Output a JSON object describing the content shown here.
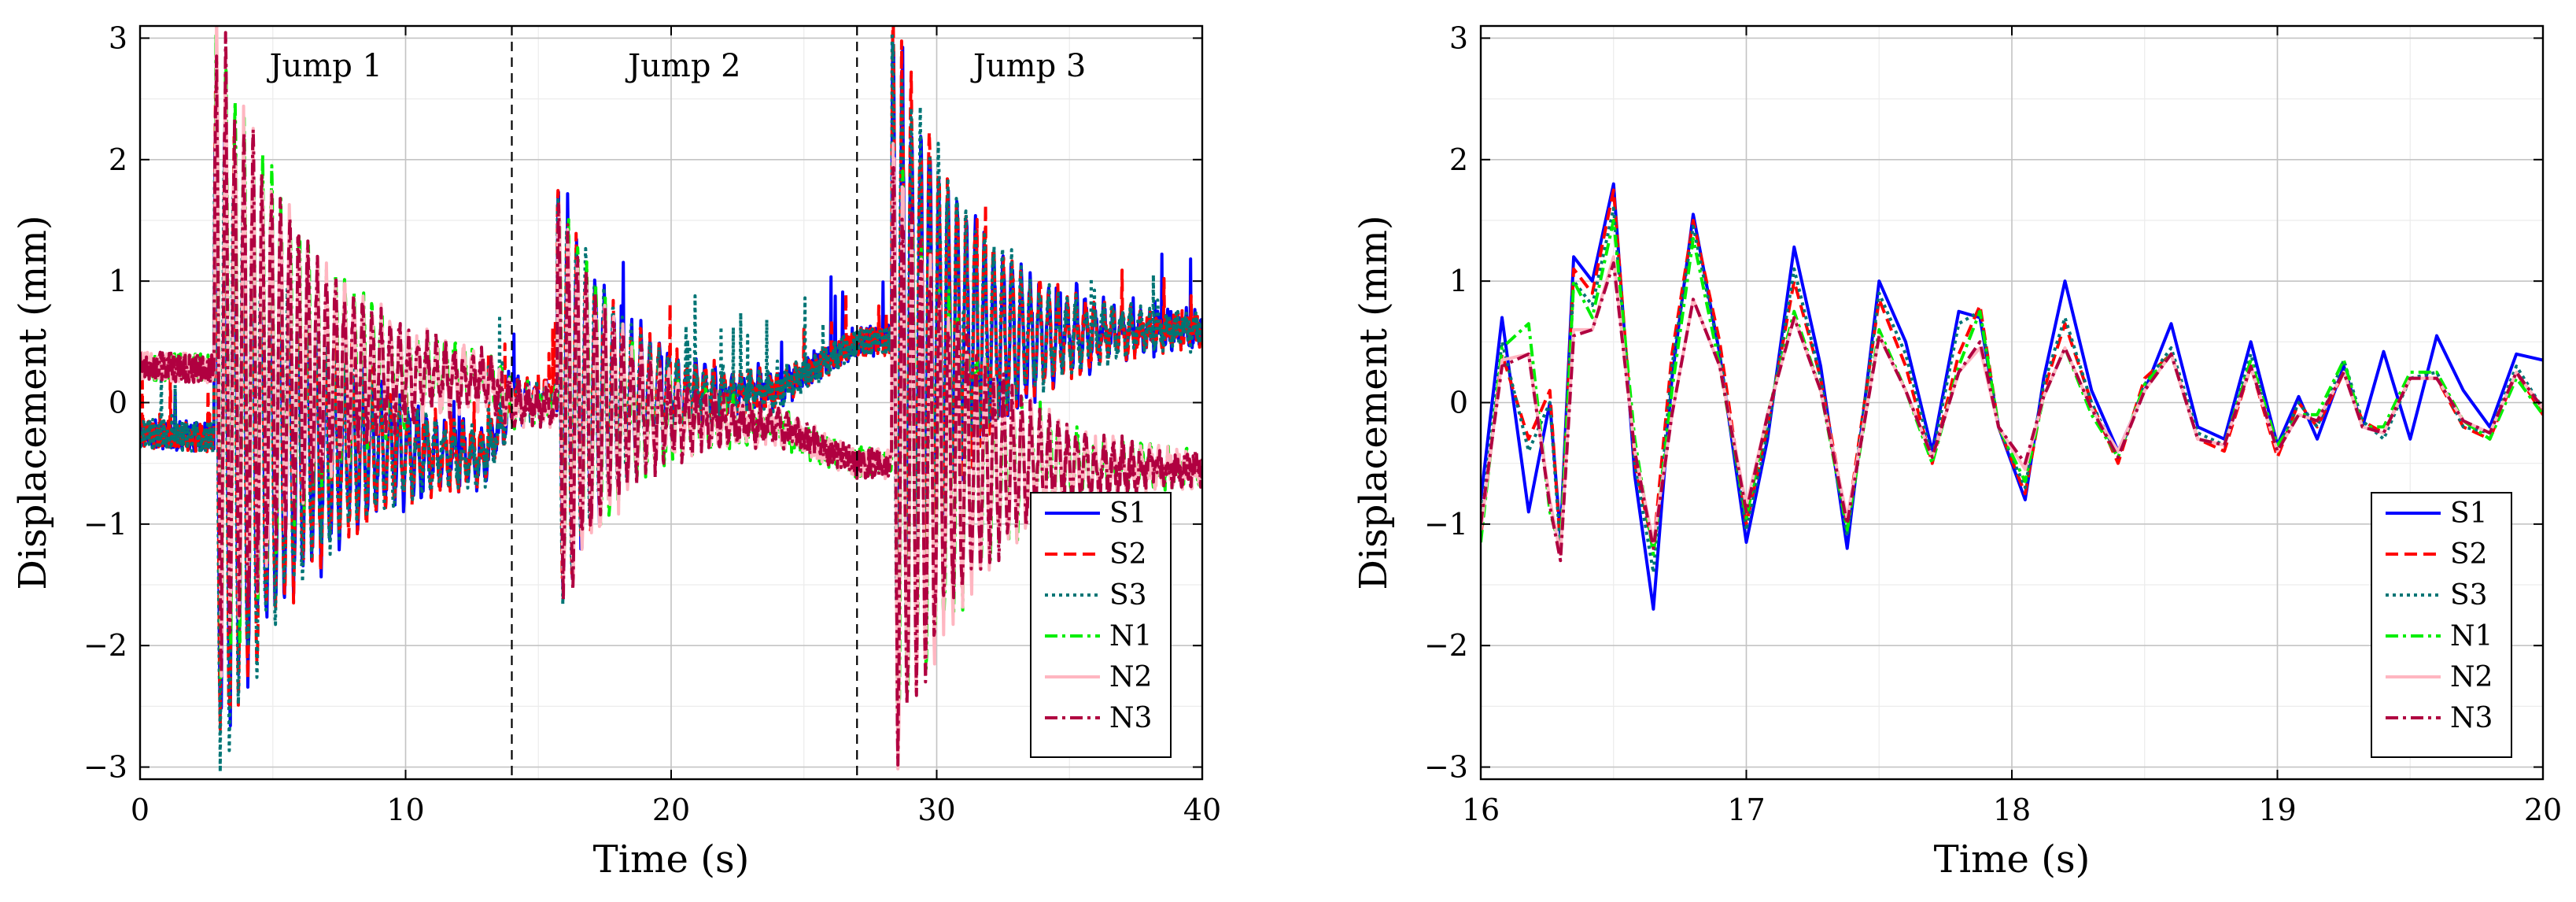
{
  "chart_data": [
    {
      "type": "line",
      "xlabel": "Time (s)",
      "ylabel": "Displacement (mm)",
      "xlim": [
        0,
        40
      ],
      "ylim": [
        -3.1,
        3.1
      ],
      "xticks": [
        0,
        10,
        20,
        30,
        40
      ],
      "yticks": [
        -3,
        -2,
        -1,
        0,
        1,
        2,
        3
      ],
      "grid": true,
      "legend_position": "bottom-right",
      "annotations": [
        {
          "text": "Jump 1",
          "x": 7
        },
        {
          "text": "Jump 2",
          "x": 20.5
        },
        {
          "text": "Jump 3",
          "x": 33.5
        }
      ],
      "vlines": [
        14,
        27
      ],
      "series": [
        {
          "name": "S1",
          "color": "#0000ff",
          "dash": "solid",
          "group": "S",
          "seed": 11
        },
        {
          "name": "S2",
          "color": "#ff0000",
          "dash": "dashed",
          "group": "S",
          "seed": 23
        },
        {
          "name": "S3",
          "color": "#007575",
          "dash": "dotted",
          "group": "S",
          "seed": 37
        },
        {
          "name": "N1",
          "color": "#00ee00",
          "dash": "dashdot",
          "group": "N",
          "seed": 41
        },
        {
          "name": "N2",
          "color": "#ffb6c1",
          "dash": "solid",
          "group": "N",
          "seed": 53
        },
        {
          "name": "N3",
          "color": "#b00040",
          "dash": "dashdot",
          "group": "N",
          "seed": 67
        }
      ],
      "envelope": {
        "jump_onsets": [
          2.8,
          15.7,
          28.3
        ],
        "peak_amplitudes": [
          2.8,
          1.8,
          2.6
        ],
        "decay_times": [
          3.5,
          2.5,
          3.0
        ],
        "baseline_S": [
          [
            0,
            -0.25
          ],
          [
            13,
            -0.45
          ],
          [
            14,
            0.0
          ],
          [
            24,
            0.1
          ],
          [
            27,
            0.5
          ],
          [
            40,
            0.6
          ]
        ],
        "baseline_N": [
          [
            0,
            0.3
          ],
          [
            13,
            0.2
          ],
          [
            14,
            0.0
          ],
          [
            24,
            -0.2
          ],
          [
            27,
            -0.5
          ],
          [
            40,
            -0.55
          ]
        ],
        "noise_level": 0.12
      }
    },
    {
      "type": "line",
      "xlabel": "Time (s)",
      "ylabel": "Displacement (mm)",
      "xlim": [
        16,
        20
      ],
      "ylim": [
        -3.1,
        3.1
      ],
      "xticks": [
        16,
        17,
        18,
        19,
        20
      ],
      "yticks": [
        -3,
        -2,
        -1,
        0,
        1,
        2,
        3
      ],
      "grid": true,
      "legend_position": "bottom-right",
      "series": [
        {
          "name": "S1",
          "color": "#0000ff",
          "dash": "solid",
          "x": [
            16.0,
            16.08,
            16.18,
            16.26,
            16.3,
            16.35,
            16.42,
            16.5,
            16.58,
            16.65,
            16.72,
            16.8,
            16.9,
            17.0,
            17.08,
            17.18,
            17.28,
            17.38,
            17.5,
            17.6,
            17.7,
            17.8,
            17.88,
            17.95,
            18.05,
            18.12,
            18.2,
            18.3,
            18.4,
            18.5,
            18.6,
            18.7,
            18.8,
            18.9,
            19.0,
            19.08,
            19.15,
            19.25,
            19.32,
            19.4,
            19.5,
            19.6,
            19.7,
            19.8,
            19.9,
            20.0
          ],
          "y": [
            -0.8,
            0.7,
            -0.9,
            0.0,
            -1.1,
            1.2,
            1.0,
            1.8,
            -0.6,
            -1.7,
            0.2,
            1.55,
            0.4,
            -1.15,
            -0.3,
            1.28,
            0.3,
            -1.2,
            1.0,
            0.5,
            -0.4,
            0.75,
            0.7,
            -0.2,
            -0.8,
            0.2,
            1.0,
            0.1,
            -0.4,
            0.1,
            0.65,
            -0.2,
            -0.3,
            0.5,
            -0.35,
            0.05,
            -0.3,
            0.3,
            -0.2,
            0.42,
            -0.3,
            0.55,
            0.1,
            -0.2,
            0.4,
            0.35
          ]
        },
        {
          "name": "S2",
          "color": "#ff0000",
          "dash": "dashed",
          "x": [
            16.0,
            16.08,
            16.18,
            16.26,
            16.3,
            16.35,
            16.42,
            16.5,
            16.58,
            16.65,
            16.72,
            16.8,
            16.9,
            17.0,
            17.08,
            17.18,
            17.28,
            17.38,
            17.5,
            17.6,
            17.7,
            17.8,
            17.88,
            17.95,
            18.05,
            18.12,
            18.2,
            18.3,
            18.4,
            18.5,
            18.6,
            18.7,
            18.8,
            18.9,
            19.0,
            19.08,
            19.15,
            19.25,
            19.32,
            19.4,
            19.5,
            19.6,
            19.7,
            19.8,
            19.9,
            20.0
          ],
          "y": [
            -1.1,
            0.4,
            -0.3,
            0.1,
            -1.2,
            1.1,
            0.9,
            1.75,
            -0.5,
            -1.2,
            0.4,
            1.5,
            0.5,
            -1.0,
            -0.2,
            1.0,
            0.2,
            -1.0,
            0.85,
            0.3,
            -0.5,
            0.4,
            0.8,
            -0.2,
            -0.75,
            0.1,
            0.65,
            0.0,
            -0.5,
            0.2,
            0.4,
            -0.3,
            -0.4,
            0.3,
            -0.45,
            0.0,
            -0.2,
            0.25,
            -0.15,
            -0.25,
            0.2,
            0.2,
            -0.2,
            -0.3,
            0.25,
            -0.1
          ]
        },
        {
          "name": "S3",
          "color": "#007575",
          "dash": "dotted",
          "x": [
            16.0,
            16.08,
            16.18,
            16.26,
            16.3,
            16.35,
            16.42,
            16.5,
            16.58,
            16.65,
            16.72,
            16.8,
            16.9,
            17.0,
            17.08,
            17.18,
            17.28,
            17.38,
            17.5,
            17.6,
            17.7,
            17.8,
            17.88,
            17.95,
            18.05,
            18.12,
            18.2,
            18.3,
            18.4,
            18.5,
            18.6,
            18.7,
            18.8,
            18.9,
            19.0,
            19.08,
            19.15,
            19.25,
            19.32,
            19.4,
            19.5,
            19.6,
            19.7,
            19.8,
            19.9,
            20.0
          ],
          "y": [
            -1.0,
            0.5,
            -0.4,
            0.0,
            -1.2,
            1.0,
            0.8,
            1.6,
            -0.5,
            -1.4,
            0.3,
            1.45,
            0.4,
            -1.05,
            -0.25,
            1.1,
            0.2,
            -1.1,
            0.9,
            0.4,
            -0.45,
            0.65,
            0.75,
            -0.2,
            -0.7,
            0.15,
            0.7,
            0.0,
            -0.45,
            0.15,
            0.45,
            -0.25,
            -0.35,
            0.4,
            -0.4,
            0.0,
            -0.2,
            0.35,
            -0.15,
            -0.3,
            0.2,
            0.25,
            -0.2,
            -0.25,
            0.3,
            -0.05
          ]
        },
        {
          "name": "N1",
          "color": "#00ee00",
          "dash": "dashdot",
          "x": [
            16.0,
            16.08,
            16.18,
            16.26,
            16.3,
            16.35,
            16.42,
            16.5,
            16.58,
            16.65,
            16.72,
            16.8,
            16.9,
            17.0,
            17.08,
            17.18,
            17.28,
            17.38,
            17.5,
            17.6,
            17.7,
            17.8,
            17.88,
            17.95,
            18.05,
            18.12,
            18.2,
            18.3,
            18.4,
            18.5,
            18.6,
            18.7,
            18.8,
            18.9,
            19.0,
            19.08,
            19.15,
            19.25,
            19.32,
            19.4,
            19.5,
            19.6,
            19.7,
            19.8,
            19.9,
            20.0
          ],
          "y": [
            -1.15,
            0.45,
            0.65,
            -0.9,
            -1.2,
            1.0,
            0.7,
            1.5,
            -0.3,
            -1.25,
            0.1,
            1.35,
            0.3,
            -0.95,
            -0.1,
            0.75,
            0.1,
            -1.05,
            0.6,
            0.1,
            -0.5,
            0.3,
            0.75,
            -0.2,
            -0.65,
            0.05,
            0.45,
            -0.1,
            -0.45,
            0.15,
            0.4,
            -0.3,
            -0.35,
            0.35,
            -0.35,
            -0.1,
            -0.1,
            0.35,
            -0.2,
            -0.2,
            0.25,
            0.25,
            -0.15,
            -0.3,
            0.2,
            -0.1
          ]
        },
        {
          "name": "N2",
          "color": "#ffb6c1",
          "dash": "solid",
          "x": [
            16.0,
            16.08,
            16.18,
            16.26,
            16.3,
            16.35,
            16.42,
            16.5,
            16.58,
            16.65,
            16.72,
            16.8,
            16.9,
            17.0,
            17.08,
            17.18,
            17.28,
            17.38,
            17.5,
            17.6,
            17.7,
            17.8,
            17.88,
            17.95,
            18.05,
            18.12,
            18.2,
            18.3,
            18.4,
            18.5,
            18.6,
            18.7,
            18.8,
            18.9,
            19.0,
            19.08,
            19.15,
            19.25,
            19.32,
            19.4,
            19.5,
            19.6,
            19.7,
            19.8,
            19.9,
            20.0
          ],
          "y": [
            -1.05,
            0.35,
            0.4,
            -0.8,
            -1.25,
            0.6,
            0.6,
            1.2,
            -0.4,
            -1.15,
            -0.1,
            0.85,
            0.3,
            -0.85,
            -0.1,
            0.7,
            0.1,
            -0.95,
            0.55,
            0.1,
            -0.45,
            0.25,
            0.45,
            -0.2,
            -0.55,
            0.05,
            0.45,
            -0.05,
            -0.4,
            0.1,
            0.4,
            -0.3,
            -0.35,
            0.3,
            -0.4,
            -0.1,
            -0.15,
            0.25,
            -0.2,
            -0.25,
            0.2,
            0.2,
            -0.15,
            -0.25,
            0.25,
            -0.05
          ]
        },
        {
          "name": "N3",
          "color": "#b00040",
          "dash": "dashdot",
          "x": [
            16.0,
            16.08,
            16.18,
            16.26,
            16.3,
            16.35,
            16.42,
            16.5,
            16.58,
            16.65,
            16.72,
            16.8,
            16.9,
            17.0,
            17.08,
            17.18,
            17.28,
            17.38,
            17.5,
            17.6,
            17.7,
            17.8,
            17.88,
            17.95,
            18.05,
            18.12,
            18.2,
            18.3,
            18.4,
            18.5,
            18.6,
            18.7,
            18.8,
            18.9,
            19.0,
            19.08,
            19.15,
            19.25,
            19.32,
            19.4,
            19.5,
            19.6,
            19.7,
            19.8,
            19.9,
            20.0
          ],
          "y": [
            -1.0,
            0.3,
            0.4,
            -0.85,
            -1.3,
            0.55,
            0.6,
            1.15,
            -0.4,
            -1.2,
            -0.1,
            0.85,
            0.3,
            -0.9,
            -0.1,
            0.7,
            0.1,
            -1.0,
            0.55,
            0.1,
            -0.45,
            0.25,
            0.5,
            -0.2,
            -0.5,
            0.05,
            0.45,
            -0.05,
            -0.45,
            0.1,
            0.4,
            -0.3,
            -0.35,
            0.3,
            -0.4,
            -0.1,
            -0.15,
            0.25,
            -0.2,
            -0.25,
            0.2,
            0.2,
            -0.15,
            -0.25,
            0.25,
            -0.05
          ]
        }
      ]
    }
  ]
}
